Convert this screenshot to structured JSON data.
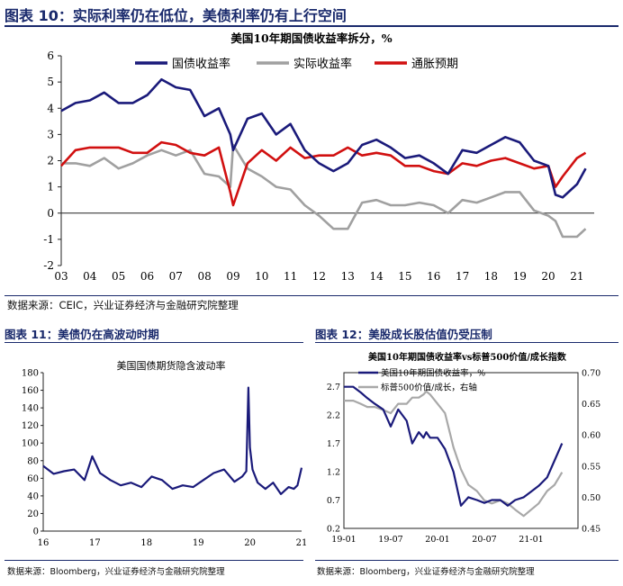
{
  "fig10": {
    "heading": "图表 10：实际利率仍在低位，美债利率仍有上行空间",
    "source": "数据来源：CEIC，兴业证券经济与金融研究院整理"
  },
  "fig11": {
    "heading": "图表 11：美债仍在高波动时期",
    "source": "数据来源：Bloomberg，兴业证券经济与金融研究院整理"
  },
  "fig12": {
    "heading": "图表 12：美股成长股估值仍受压制",
    "source": "数据来源：Bloomberg，兴业证券经济与金融研究院整理"
  },
  "chart_data": [
    {
      "id": "fig10",
      "type": "line",
      "title": "美国10年期国债收益率拆分，%",
      "x_tick_labels": [
        "03",
        "04",
        "05",
        "06",
        "07",
        "08",
        "09",
        "10",
        "11",
        "12",
        "13",
        "14",
        "15",
        "16",
        "17",
        "18",
        "19",
        "20",
        "21"
      ],
      "ylim": [
        -2,
        6
      ],
      "y_ticks": [
        -2,
        -1,
        0,
        1,
        2,
        3,
        4,
        5,
        6
      ],
      "legend_position": "top",
      "x": [
        2003.0,
        2003.5,
        2004.0,
        2004.5,
        2005.0,
        2005.5,
        2006.0,
        2006.5,
        2007.0,
        2007.5,
        2008.0,
        2008.5,
        2008.9,
        2009.0,
        2009.5,
        2010.0,
        2010.5,
        2011.0,
        2011.5,
        2012.0,
        2012.5,
        2013.0,
        2013.5,
        2014.0,
        2014.5,
        2015.0,
        2015.5,
        2016.0,
        2016.5,
        2017.0,
        2017.5,
        2018.0,
        2018.5,
        2019.0,
        2019.5,
        2020.0,
        2020.25,
        2020.5,
        2021.0,
        2021.3
      ],
      "series": [
        {
          "name": "国债收益率",
          "color": "#1a1a7a",
          "values": [
            3.9,
            4.2,
            4.3,
            4.6,
            4.2,
            4.2,
            4.5,
            5.1,
            4.8,
            4.7,
            3.7,
            4.0,
            3.0,
            2.4,
            3.6,
            3.8,
            3.0,
            3.4,
            2.4,
            1.9,
            1.6,
            1.9,
            2.6,
            2.8,
            2.5,
            2.1,
            2.2,
            1.9,
            1.5,
            2.4,
            2.3,
            2.6,
            2.9,
            2.7,
            2.0,
            1.8,
            0.7,
            0.6,
            1.1,
            1.7
          ]
        },
        {
          "name": "实际收益率",
          "color": "#a0a0a0",
          "values": [
            1.9,
            1.9,
            1.8,
            2.1,
            1.7,
            1.9,
            2.2,
            2.4,
            2.2,
            2.4,
            1.5,
            1.4,
            1.0,
            2.6,
            1.7,
            1.4,
            1.0,
            0.9,
            0.3,
            -0.1,
            -0.6,
            -0.6,
            0.4,
            0.5,
            0.3,
            0.3,
            0.4,
            0.3,
            0.0,
            0.5,
            0.4,
            0.6,
            0.8,
            0.8,
            0.1,
            -0.1,
            -0.3,
            -0.9,
            -0.9,
            -0.6
          ]
        },
        {
          "name": "通胀预期",
          "color": "#d11010",
          "values": [
            1.8,
            2.4,
            2.5,
            2.5,
            2.5,
            2.3,
            2.3,
            2.7,
            2.6,
            2.3,
            2.2,
            2.5,
            0.8,
            0.3,
            1.9,
            2.4,
            2.0,
            2.5,
            2.1,
            2.2,
            2.2,
            2.5,
            2.2,
            2.3,
            2.2,
            1.8,
            1.8,
            1.6,
            1.5,
            1.9,
            1.8,
            2.0,
            2.1,
            1.9,
            1.7,
            1.8,
            1.0,
            1.4,
            2.1,
            2.3
          ]
        }
      ]
    },
    {
      "id": "fig11",
      "type": "line",
      "title": "美国国债期货隐含波动率",
      "x_tick_labels": [
        "16",
        "17",
        "18",
        "19",
        "20",
        "21"
      ],
      "ylim": [
        0,
        180
      ],
      "y_ticks": [
        0,
        20,
        40,
        60,
        80,
        100,
        120,
        140,
        160,
        180
      ],
      "x": [
        2016.0,
        2016.2,
        2016.4,
        2016.6,
        2016.8,
        2016.95,
        2017.1,
        2017.3,
        2017.5,
        2017.7,
        2017.9,
        2018.1,
        2018.3,
        2018.5,
        2018.7,
        2018.9,
        2019.1,
        2019.3,
        2019.5,
        2019.7,
        2019.85,
        2019.93,
        2019.97,
        2020.0,
        2020.05,
        2020.15,
        2020.3,
        2020.45,
        2020.6,
        2020.75,
        2020.85,
        2020.92,
        2021.0
      ],
      "series": [
        {
          "name": "美国国债期货隐含波动率",
          "color": "#1a1a7a",
          "values": [
            74,
            65,
            68,
            70,
            58,
            85,
            66,
            58,
            52,
            55,
            50,
            62,
            58,
            48,
            52,
            50,
            58,
            66,
            70,
            56,
            62,
            68,
            163,
            95,
            70,
            55,
            48,
            55,
            42,
            50,
            48,
            52,
            72
          ]
        }
      ]
    },
    {
      "id": "fig12",
      "type": "line",
      "title": "美国10年期国债收益率vs标普500价值/成长指数",
      "x_tick_labels": [
        "19-01",
        "19-07",
        "20-01",
        "20-07",
        "21-01"
      ],
      "y_left": {
        "ticks": [
          0.2,
          0.7,
          1.2,
          1.7,
          2.2,
          2.7
        ],
        "lim": [
          0.2,
          2.95
        ]
      },
      "y_right": {
        "ticks": [
          0.45,
          0.5,
          0.55,
          0.6,
          0.65,
          0.7
        ],
        "lim": [
          0.45,
          0.7
        ]
      },
      "legend_position": "top-left",
      "x": [
        0.0,
        0.1,
        0.18,
        0.25,
        0.33,
        0.42,
        0.5,
        0.58,
        0.67,
        0.73,
        0.8,
        0.85,
        0.88,
        0.92,
        1.0,
        1.08,
        1.17,
        1.25,
        1.33,
        1.42,
        1.5,
        1.58,
        1.67,
        1.75,
        1.83,
        1.92,
        2.0,
        2.08,
        2.17,
        2.25,
        2.33
      ],
      "series": [
        {
          "name": "美国10年期国债收益率，%",
          "axis": "left",
          "color": "#1a1a7a",
          "values": [
            2.7,
            2.7,
            2.6,
            2.5,
            2.4,
            2.3,
            2.0,
            2.3,
            2.1,
            1.7,
            1.9,
            1.8,
            1.9,
            1.8,
            1.8,
            1.6,
            1.2,
            0.6,
            0.75,
            0.7,
            0.65,
            0.7,
            0.7,
            0.6,
            0.7,
            0.75,
            0.85,
            0.95,
            1.1,
            1.4,
            1.7
          ]
        },
        {
          "name": "标普500价值/成长，右轴",
          "axis": "right",
          "color": "#a8a8a8",
          "values": [
            0.655,
            0.655,
            0.65,
            0.645,
            0.645,
            0.64,
            0.635,
            0.65,
            0.65,
            0.66,
            0.66,
            0.665,
            0.67,
            0.665,
            0.65,
            0.635,
            0.58,
            0.545,
            0.52,
            0.51,
            0.495,
            0.49,
            0.495,
            0.49,
            0.48,
            0.47,
            0.48,
            0.49,
            0.51,
            0.52,
            0.54
          ]
        }
      ]
    }
  ]
}
